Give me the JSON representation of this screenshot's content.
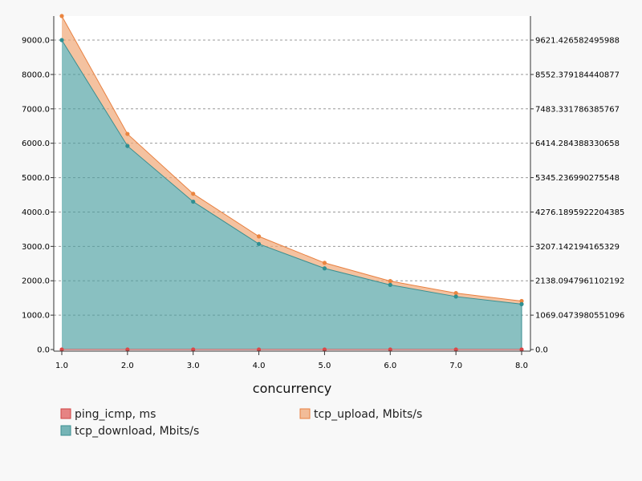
{
  "chart_data": {
    "type": "area",
    "xlabel": "concurrency",
    "x": [
      1.0,
      2.0,
      3.0,
      4.0,
      5.0,
      6.0,
      7.0,
      8.0
    ],
    "x_ticks": [
      "1.0",
      "2.0",
      "3.0",
      "4.0",
      "5.0",
      "6.0",
      "7.0",
      "8.0"
    ],
    "xlim": [
      1.0,
      8.0
    ],
    "ylim": [
      0,
      9700
    ],
    "y_left_ticks": [
      {
        "value": 0,
        "label": "0.0"
      },
      {
        "value": 1000,
        "label": "1000.0"
      },
      {
        "value": 2000,
        "label": "2000.0"
      },
      {
        "value": 3000,
        "label": "3000.0"
      },
      {
        "value": 4000,
        "label": "4000.0"
      },
      {
        "value": 5000,
        "label": "5000.0"
      },
      {
        "value": 6000,
        "label": "6000.0"
      },
      {
        "value": 7000,
        "label": "7000.0"
      },
      {
        "value": 8000,
        "label": "8000.0"
      },
      {
        "value": 9000,
        "label": "9000.0"
      }
    ],
    "y_right_ticks": [
      "0.0",
      "1069.0473980551096",
      "2138.0947961102192",
      "3207.142194165329",
      "4276.1895922204385",
      "5345.236990275548",
      "6414.284388330658",
      "7483.331786385767",
      "8552.379184440877",
      "9621.426582495988"
    ],
    "grid": true,
    "stacked": true,
    "legend_position": "bottom",
    "series": [
      {
        "name": "ping_icmp, ms",
        "color": "#e05c5c",
        "values": [
          0.4,
          0.4,
          0.4,
          0.4,
          0.4,
          0.4,
          0.4,
          0.4
        ]
      },
      {
        "name": "tcp_download, Mbits/s",
        "color": "#4a9ea0",
        "values": [
          9000,
          5920,
          4300,
          3070,
          2360,
          1880,
          1540,
          1320
        ]
      },
      {
        "name": "tcp_upload, Mbits/s",
        "color": "#f0a878",
        "values": [
          700,
          350,
          230,
          220,
          160,
          110,
          100,
          90
        ]
      }
    ]
  }
}
